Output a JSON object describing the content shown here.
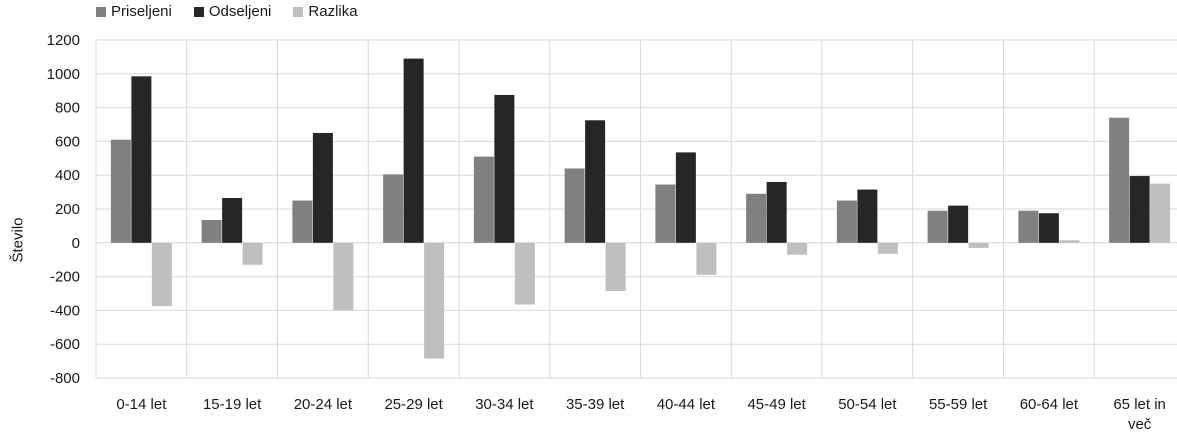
{
  "chart_data": {
    "type": "bar",
    "categories": [
      "0-14 let",
      "15-19 let",
      "20-24 let",
      "25-29 let",
      "30-34 let",
      "35-39 let",
      "40-44 let",
      "45-49 let",
      "50-54 let",
      "55-59 let",
      "60-64 let",
      "65 let in več"
    ],
    "series": [
      {
        "name": "Priseljeni",
        "color": "#808080",
        "values": [
          610,
          135,
          250,
          405,
          510,
          440,
          345,
          290,
          250,
          190,
          190,
          740
        ]
      },
      {
        "name": "Odseljeni",
        "color": "#262626",
        "values": [
          985,
          265,
          650,
          1090,
          875,
          725,
          535,
          360,
          315,
          220,
          175,
          395
        ]
      },
      {
        "name": "Razlika",
        "color": "#bfbfbf",
        "values": [
          -375,
          -130,
          -400,
          -685,
          -365,
          -285,
          -190,
          -70,
          -65,
          -30,
          15,
          350
        ]
      }
    ],
    "ylabel": "Število",
    "ylim": [
      -800,
      1200
    ],
    "yticks": [
      -800,
      -600,
      -400,
      -200,
      0,
      200,
      400,
      600,
      800,
      1000,
      1200
    ],
    "ytick_labels": [
      "-800",
      "-600",
      "-400",
      "-200",
      "0",
      "200",
      "400",
      "600",
      "800",
      "1000",
      "1200"
    ],
    "grid": "vertical category separators",
    "legend": "top-left"
  }
}
